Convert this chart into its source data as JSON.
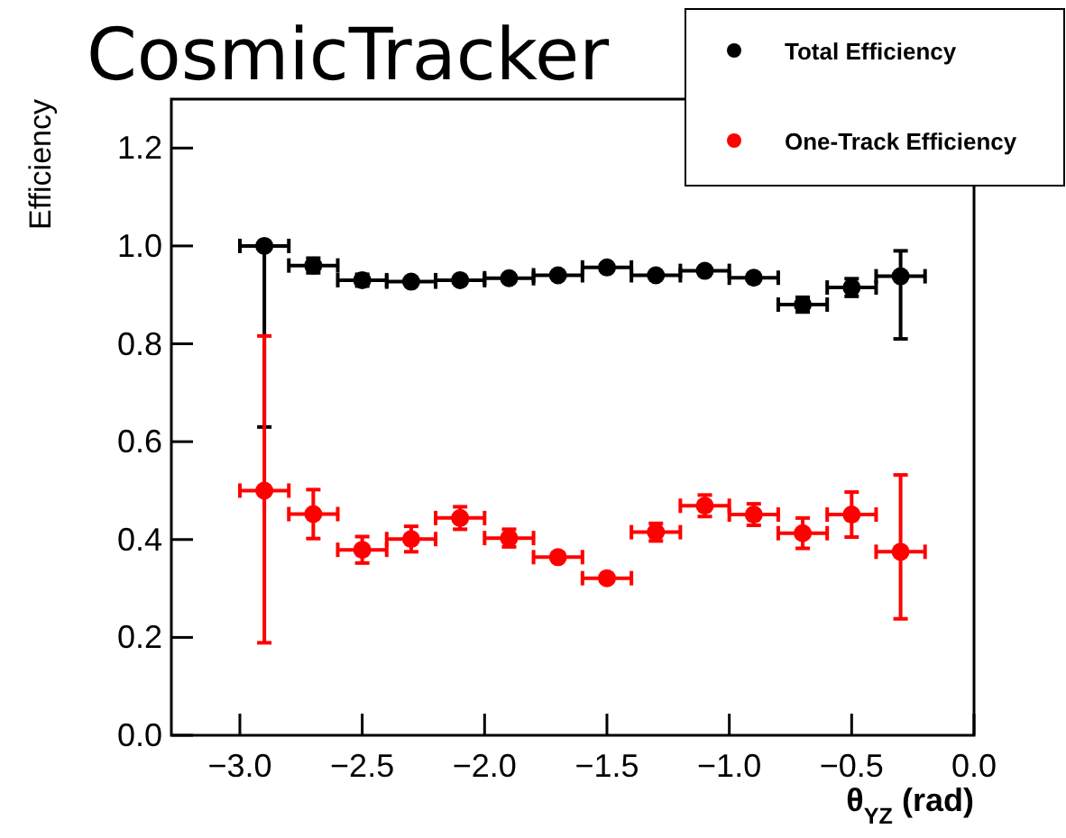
{
  "chart_data": {
    "type": "scatter",
    "title": "CosmicTracker",
    "xlabel": "θ$_{YZ}$ (rad)",
    "ylabel": "Efficiency",
    "x": [
      -2.9,
      -2.7,
      -2.5,
      -2.3,
      -2.1,
      -1.9,
      -1.7,
      -1.5,
      -1.3,
      -1.1,
      -0.9,
      -0.7,
      -0.5,
      -0.3
    ],
    "series": [
      {
        "name": "Total Efficiency",
        "color": "#000000",
        "values": [
          1.0,
          0.96,
          0.93,
          0.927,
          0.93,
          0.934,
          0.94,
          0.956,
          0.94,
          0.949,
          0.935,
          0.88,
          0.915,
          0.938
        ],
        "errors": [
          [
            0.63,
            1.0
          ],
          0.015,
          0.012,
          0.005,
          0.005,
          0.005,
          0.005,
          0.005,
          0.005,
          0.005,
          0.005,
          0.015,
          0.018,
          [
            0.81,
            0.99
          ]
        ],
        "xerrors": [
          0.1,
          0.1,
          0.1,
          0.1,
          0.1,
          0.1,
          0.1,
          0.1,
          0.1,
          0.1,
          0.1,
          0.1,
          0.1,
          0.1
        ]
      },
      {
        "name": "One-Track Efficiency",
        "color": "#ff0000",
        "values": [
          0.5,
          0.452,
          0.379,
          0.401,
          0.444,
          0.403,
          0.364,
          0.321,
          0.415,
          0.469,
          0.451,
          0.413,
          0.451,
          0.375
        ],
        "errors": [
          [
            0.189,
            0.816
          ],
          0.05,
          0.027,
          0.026,
          0.023,
          0.018,
          0.005,
          0.005,
          0.018,
          0.022,
          0.022,
          0.031,
          0.046,
          [
            0.238,
            0.532
          ]
        ],
        "xerrors": [
          0.1,
          0.1,
          0.1,
          0.1,
          0.1,
          0.1,
          0.1,
          0.1,
          0.1,
          0.1,
          0.1,
          0.1,
          0.1,
          0.1
        ]
      }
    ],
    "xlim": [
      -3.28,
      0
    ],
    "ylim": [
      0,
      1.3
    ],
    "xticks": [
      {
        "value": -3.0,
        "label": "−3.0"
      },
      {
        "value": -2.5,
        "label": "−2.5"
      },
      {
        "value": -2.0,
        "label": "−2.0"
      },
      {
        "value": -1.5,
        "label": "−1.5"
      },
      {
        "value": -1.0,
        "label": "−1.0"
      },
      {
        "value": -0.5,
        "label": "−0.5"
      },
      {
        "value": 0,
        "label": "0.0"
      }
    ],
    "yticks": [
      {
        "value": 0,
        "label": "0.0"
      },
      {
        "value": 0.2,
        "label": "0.2"
      },
      {
        "value": 0.4,
        "label": "0.4"
      },
      {
        "value": 0.6,
        "label": "0.6"
      },
      {
        "value": 0.8,
        "label": "0.8"
      },
      {
        "value": 1.0,
        "label": "1.0"
      },
      {
        "value": 1.2,
        "label": "1.2"
      }
    ],
    "marker": "circle",
    "legend": "top right"
  }
}
